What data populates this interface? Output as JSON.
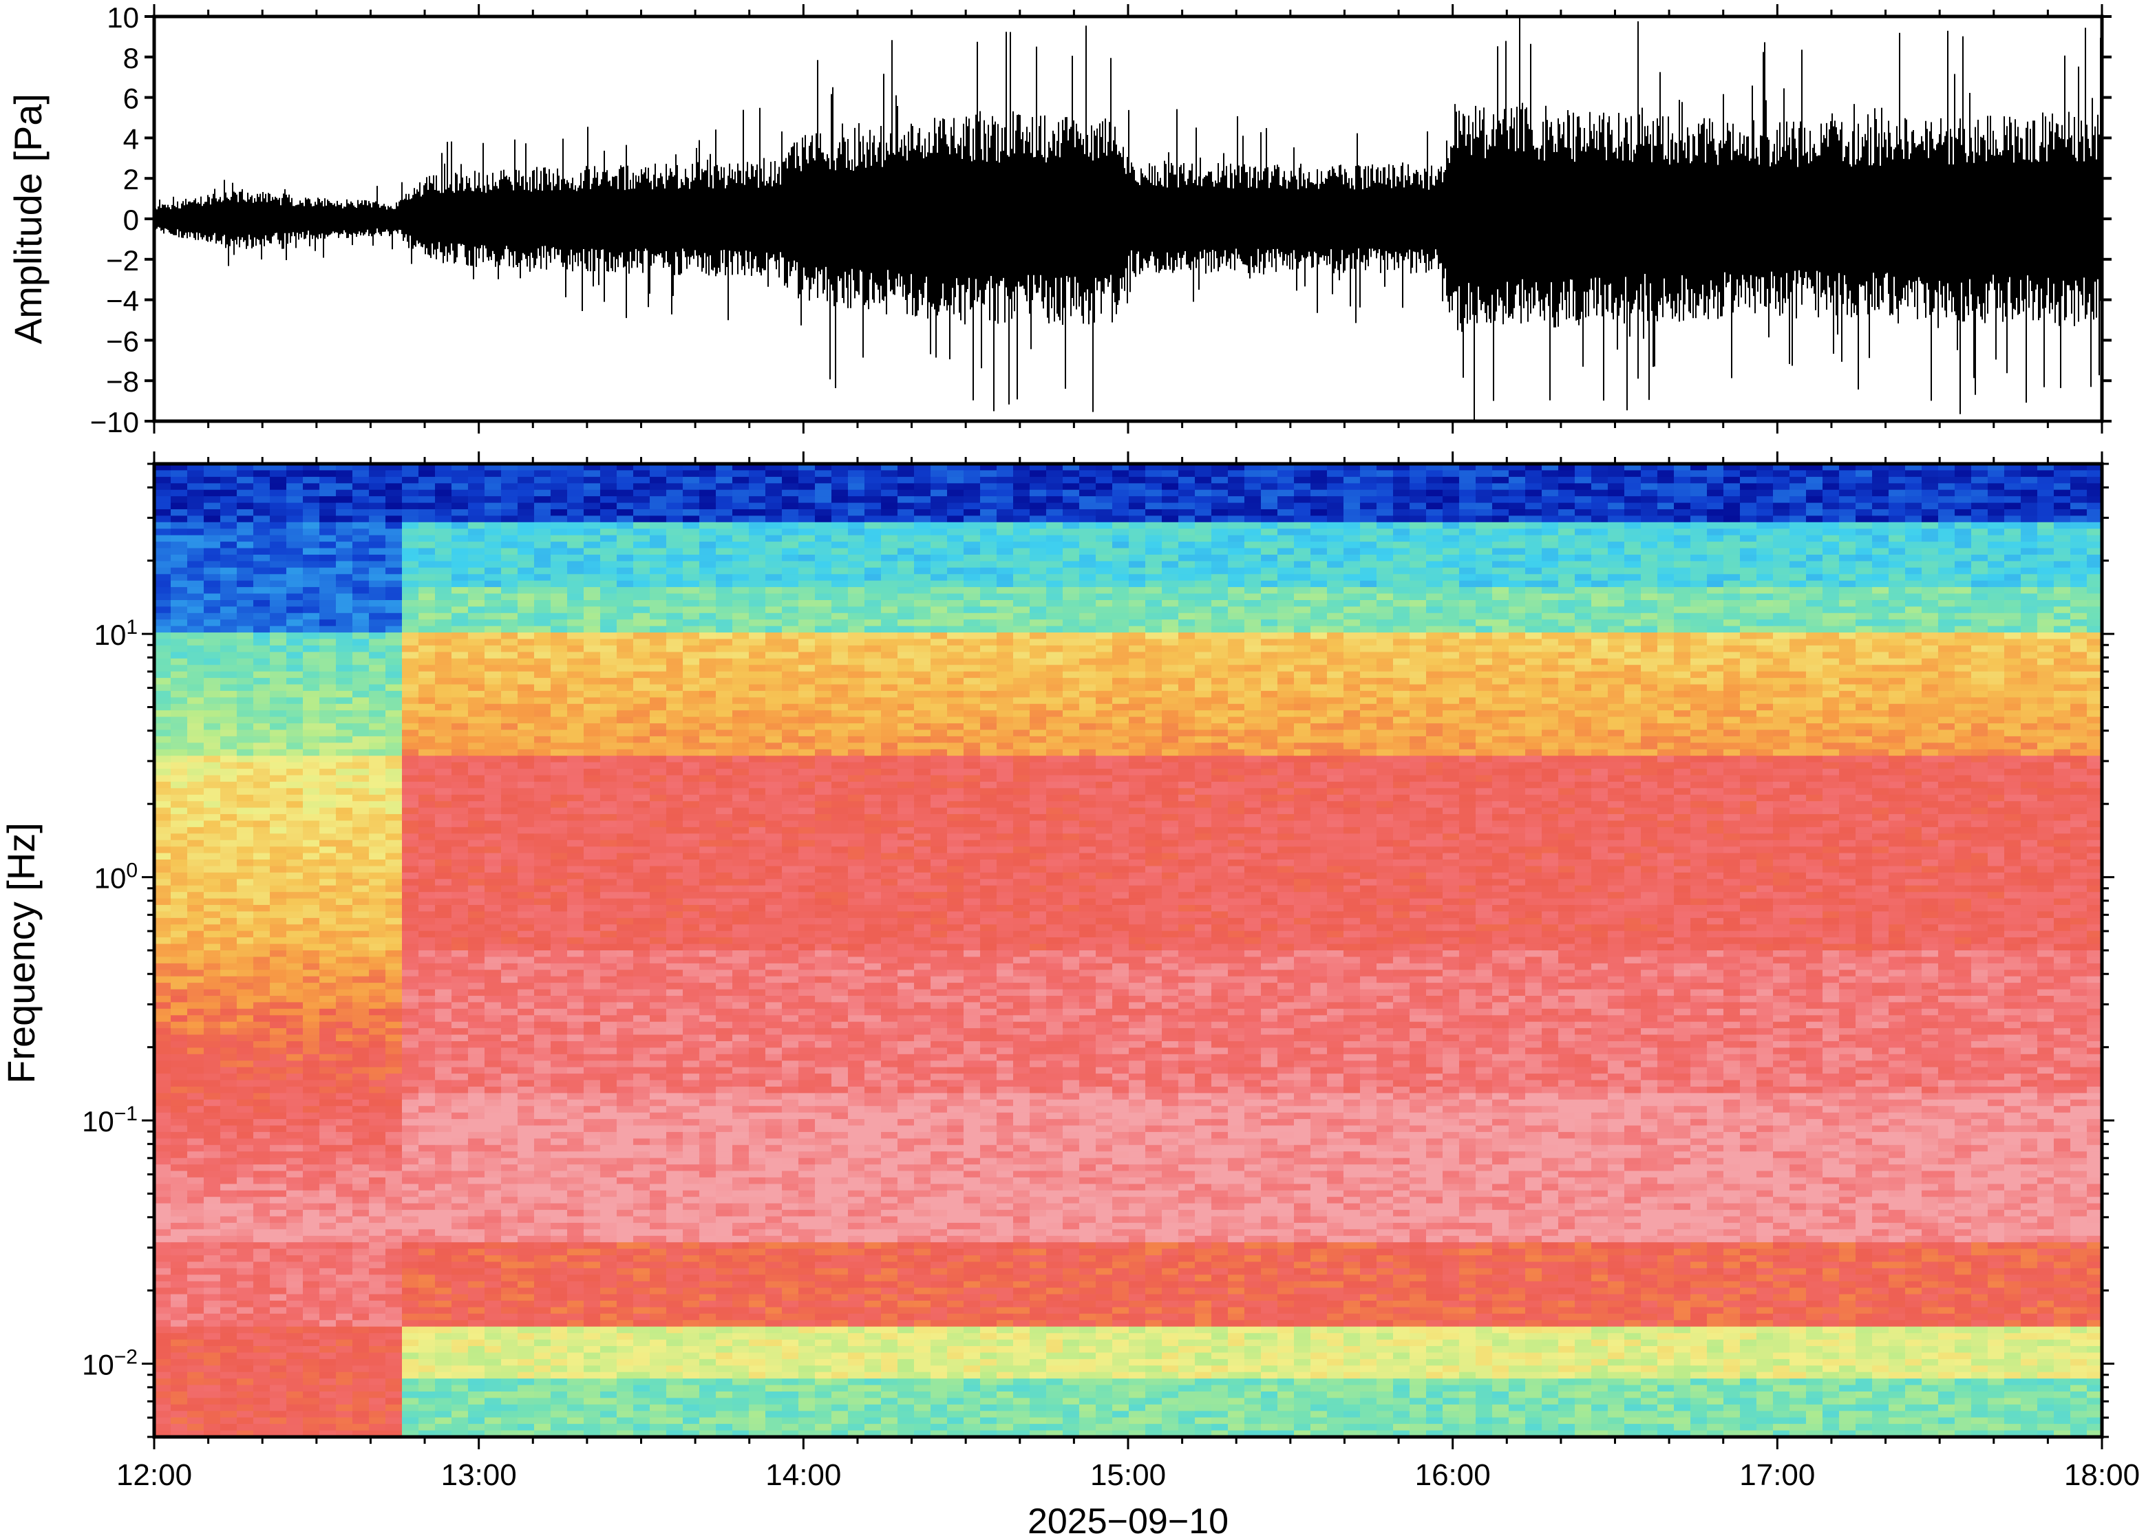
{
  "chart_data": [
    {
      "type": "line",
      "title": "",
      "xlabel": "",
      "ylabel": "Amplitude [Pa]",
      "xlim": [
        "12:00",
        "18:00"
      ],
      "ylim": [
        -10,
        10
      ],
      "y_ticks": [
        "10",
        "8",
        "6",
        "4",
        "2",
        "0",
        "−2",
        "−4",
        "−6",
        "−8",
        "−10"
      ],
      "y_tick_values": [
        10,
        8,
        6,
        4,
        2,
        0,
        -2,
        -4,
        -6,
        -8,
        -10
      ],
      "series": [
        {
          "color": "#000000",
          "envelope_points": [
            {
              "x": "12:00",
              "amplitude": 0.6
            },
            {
              "x": "12:15",
              "amplitude": 1.5
            },
            {
              "x": "12:30",
              "amplitude": 1.0
            },
            {
              "x": "12:45",
              "amplitude": 0.8
            },
            {
              "x": "12:50",
              "amplitude": 2.0
            },
            {
              "x": "13:00",
              "amplitude": 2.3
            },
            {
              "x": "13:30",
              "amplitude": 2.6
            },
            {
              "x": "13:55",
              "amplitude": 2.8
            },
            {
              "x": "14:00",
              "amplitude": 4.0
            },
            {
              "x": "14:30",
              "amplitude": 5.0
            },
            {
              "x": "14:58",
              "amplitude": 5.0
            },
            {
              "x": "15:00",
              "amplitude": 2.8
            },
            {
              "x": "15:30",
              "amplitude": 2.6
            },
            {
              "x": "15:58",
              "amplitude": 2.6
            },
            {
              "x": "16:00",
              "amplitude": 5.5
            },
            {
              "x": "16:30",
              "amplitude": 5.0
            },
            {
              "x": "17:00",
              "amplitude": 4.6
            },
            {
              "x": "17:30",
              "amplitude": 4.8
            },
            {
              "x": "18:00",
              "amplitude": 5.2
            }
          ]
        }
      ]
    },
    {
      "type": "heatmap",
      "title": "",
      "xlabel": "2025−09−10",
      "ylabel": "Frequency [Hz]",
      "x_scale": "time",
      "y_scale": "log",
      "xlim": [
        "12:00",
        "18:00"
      ],
      "ylim": [
        0.005,
        50
      ],
      "x_ticks": [
        "12:00",
        "13:00",
        "14:00",
        "15:00",
        "16:00",
        "17:00",
        "18:00"
      ],
      "y_ticks": [
        {
          "base": "10",
          "exponent": "1",
          "value": 10
        },
        {
          "base": "10",
          "exponent": "0",
          "value": 1
        },
        {
          "base": "10",
          "exponent": "−1",
          "value": 0.1
        },
        {
          "base": "10",
          "exponent": "−2",
          "value": 0.01
        }
      ],
      "colormap": [
        "#00008b",
        "#1040d0",
        "#2a8de8",
        "#3fd0ef",
        "#70e0b8",
        "#b8ec8a",
        "#f2ef88",
        "#f6c454",
        "#f79a45",
        "#ee5f52",
        "#f26f70",
        "#f5a3a8"
      ],
      "time_segments": [
        {
          "start": "12:00",
          "end": "12:47",
          "level": "quiet"
        },
        {
          "start": "12:47",
          "end": "14:00",
          "level": "moderate"
        },
        {
          "start": "14:00",
          "end": "15:00",
          "level": "loud"
        },
        {
          "start": "15:00",
          "end": "16:00",
          "level": "moderate"
        },
        {
          "start": "16:00",
          "end": "18:00",
          "level": "loud"
        }
      ]
    }
  ]
}
